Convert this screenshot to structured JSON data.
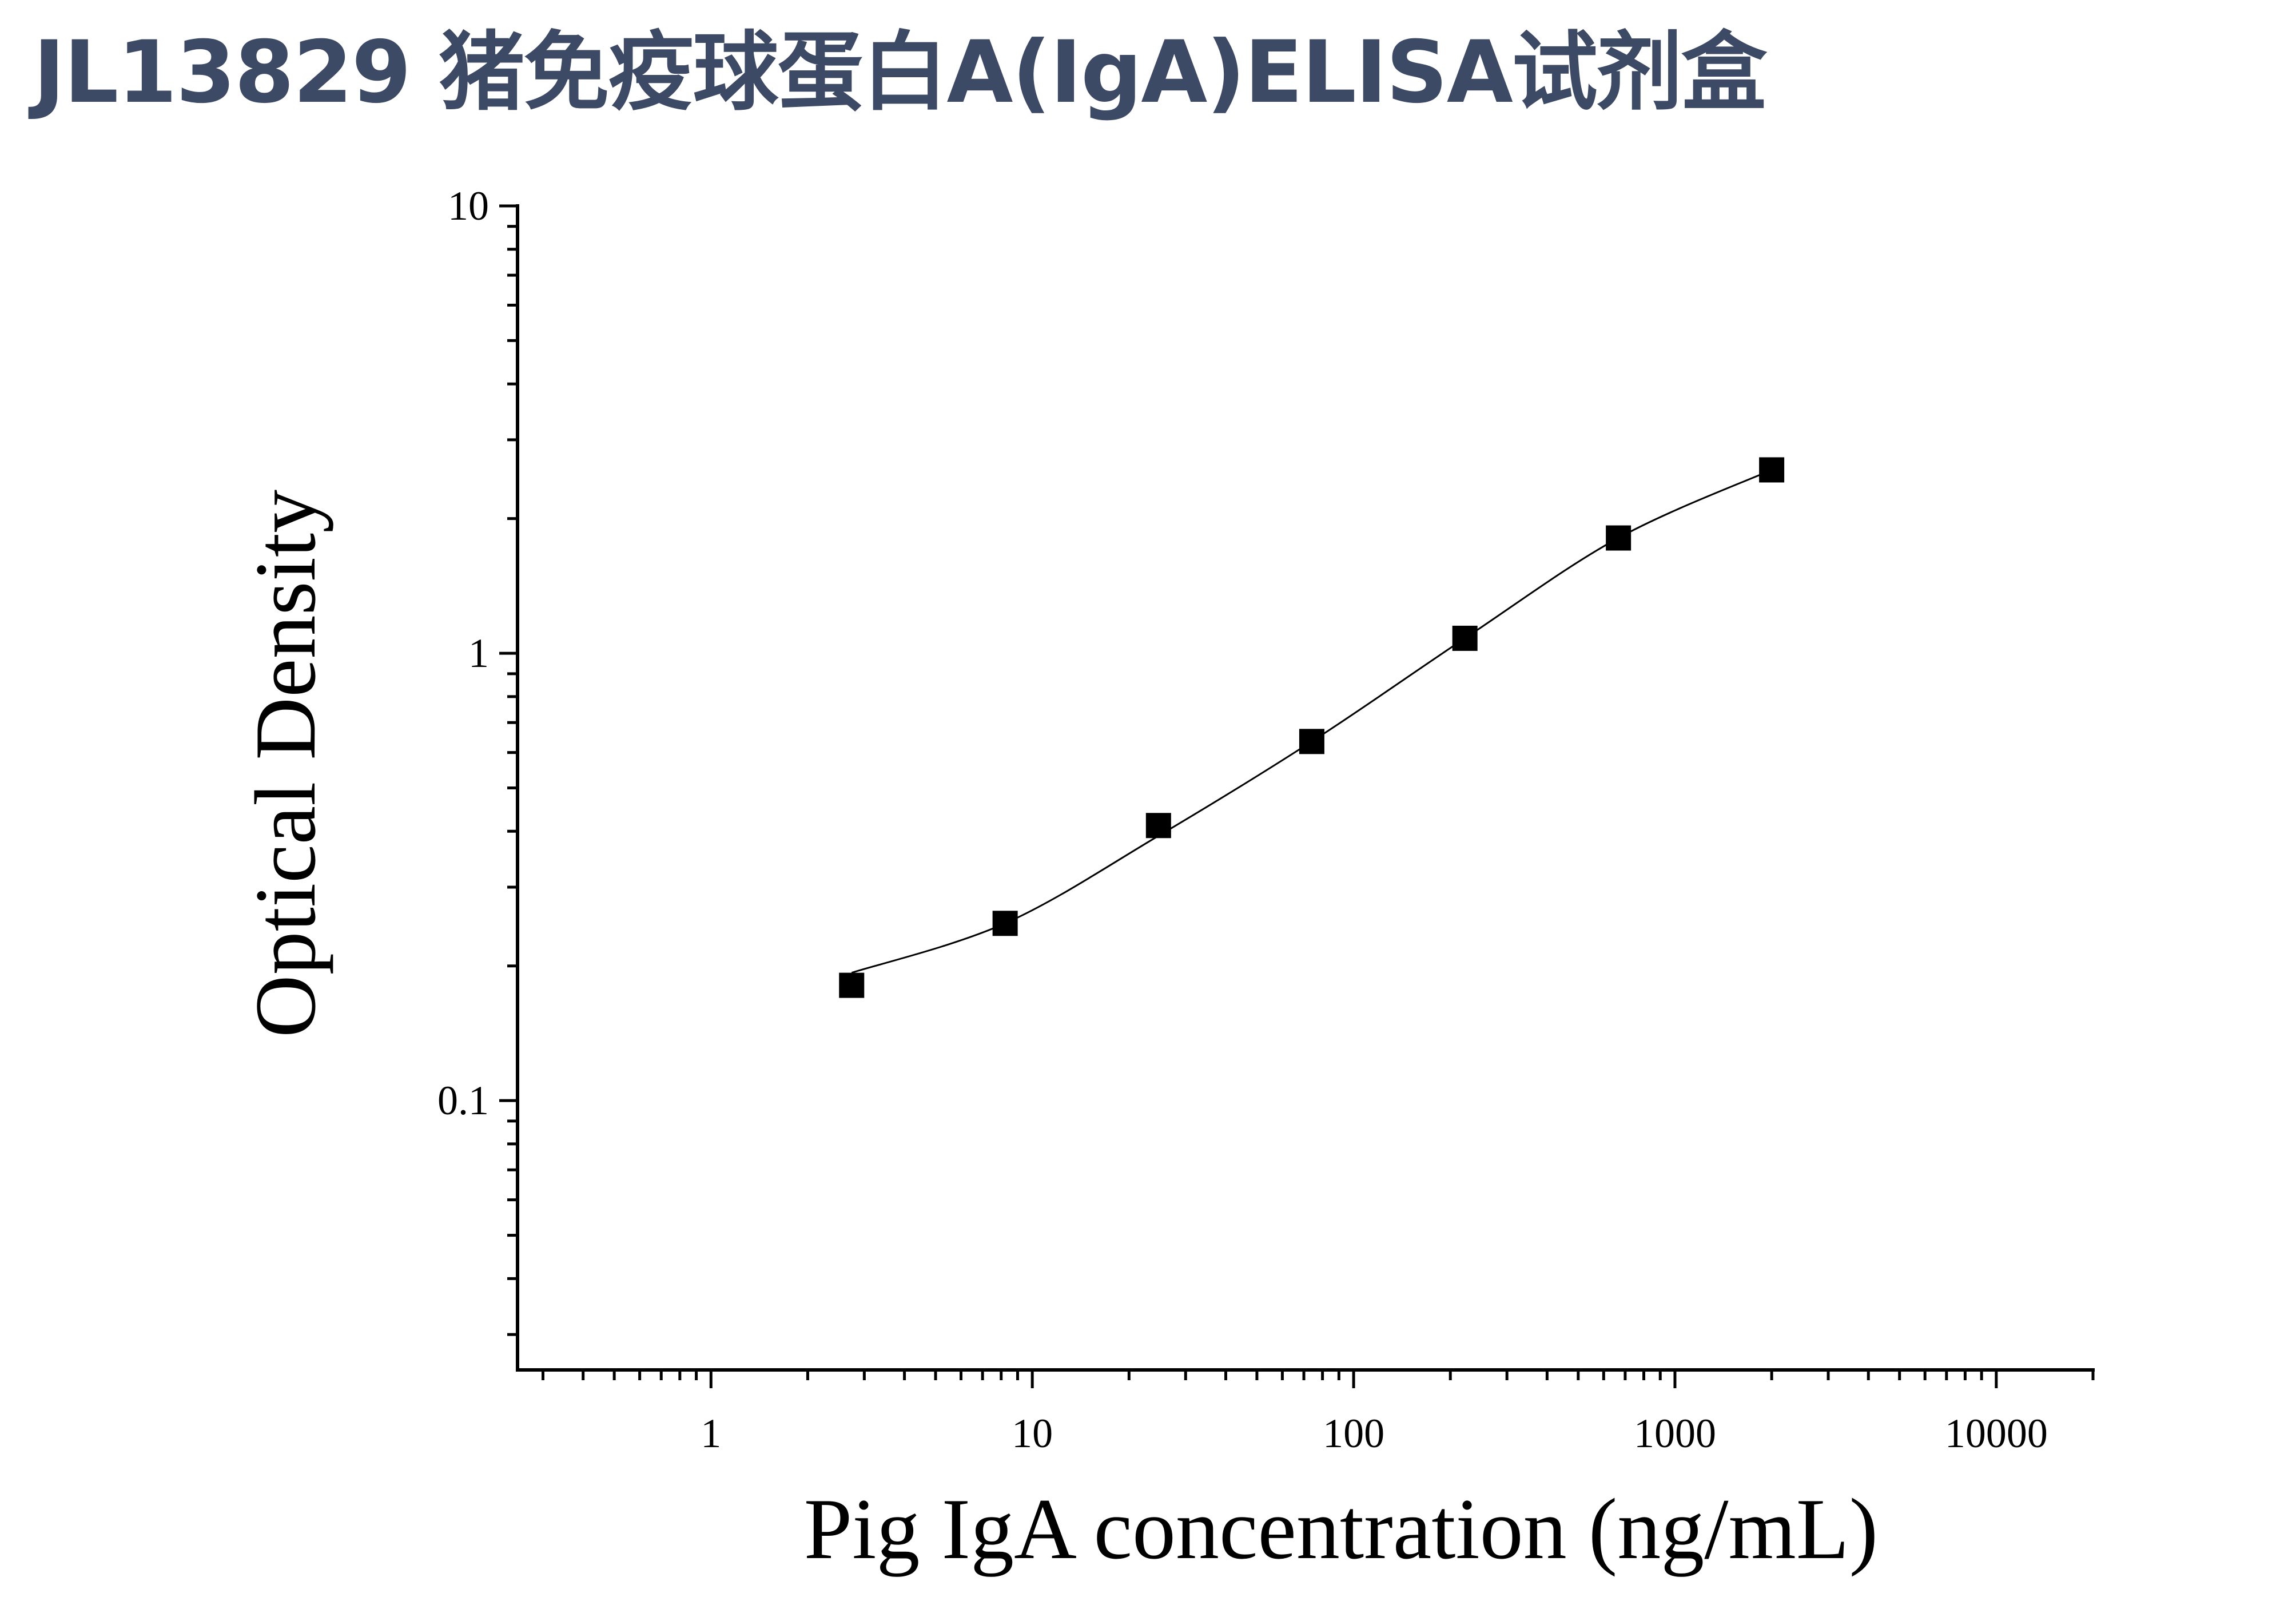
{
  "chart_data": {
    "type": "scatter",
    "title": "JL13829 猪免疫球蛋白A(IgA)ELISA试剂盒",
    "xlabel": "Pig IgA concentration (ng/mL)",
    "ylabel": "Optical Density",
    "x_scale": "log",
    "y_scale": "log",
    "xlim": [
      0.25,
      20000
    ],
    "ylim": [
      0.025,
      10
    ],
    "x_ticks": [
      "1",
      "10",
      "100",
      "1000",
      "10000"
    ],
    "y_ticks": [
      "0.1",
      "1",
      "10"
    ],
    "grid": false,
    "legend": "none",
    "series": [
      {
        "x": [
          2.74,
          8.23,
          24.7,
          74.1,
          222,
          667,
          2000
        ],
        "y": [
          0.181,
          0.249,
          0.412,
          0.635,
          1.08,
          1.81,
          2.57
        ]
      }
    ],
    "fit_curve": "smooth fitted curve through points",
    "colors": {
      "marker": "#000000",
      "line": "#000000",
      "title": "#3d4a66"
    }
  }
}
